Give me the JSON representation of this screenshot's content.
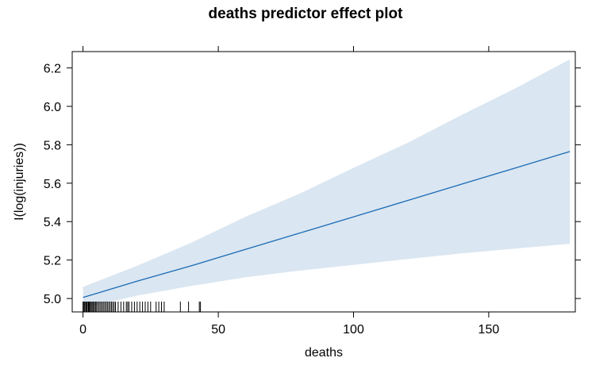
{
  "chart_data": {
    "type": "line",
    "title": "deaths predictor effect plot",
    "xlabel": "deaths",
    "ylabel": "I(log(injuries))",
    "xlim": [
      -4,
      182
    ],
    "ylim": [
      4.93,
      6.285
    ],
    "xticks": [
      0,
      50,
      100,
      150
    ],
    "yticks": [
      5.0,
      5.2,
      5.4,
      5.6,
      5.8,
      6.0,
      6.2
    ],
    "grid": false,
    "series": [
      {
        "x": [
          0,
          20,
          40,
          60,
          80,
          100,
          120,
          140,
          160,
          180
        ],
        "y": [
          5.005,
          5.09,
          5.17,
          5.255,
          5.34,
          5.425,
          5.51,
          5.595,
          5.68,
          5.765
        ],
        "lower": [
          4.95,
          5.015,
          5.065,
          5.11,
          5.145,
          5.175,
          5.205,
          5.235,
          5.26,
          5.285
        ],
        "upper": [
          5.06,
          5.17,
          5.29,
          5.425,
          5.545,
          5.68,
          5.81,
          5.955,
          6.095,
          6.245
        ]
      }
    ],
    "rug": [
      0,
      0.3,
      0.6,
      1,
      1.3,
      1.6,
      2,
      2.3,
      2.7,
      3,
      3.4,
      3.8,
      4.2,
      4.6,
      5,
      5.5,
      6,
      6.5,
      7,
      7.5,
      8,
      8.5,
      9,
      9.5,
      10,
      10.5,
      11,
      11.5,
      12,
      13,
      14,
      15,
      16,
      16.5,
      17,
      18,
      19,
      20,
      21,
      22,
      23,
      24,
      25,
      27,
      28,
      29,
      30,
      36,
      39,
      43,
      43.4
    ]
  }
}
